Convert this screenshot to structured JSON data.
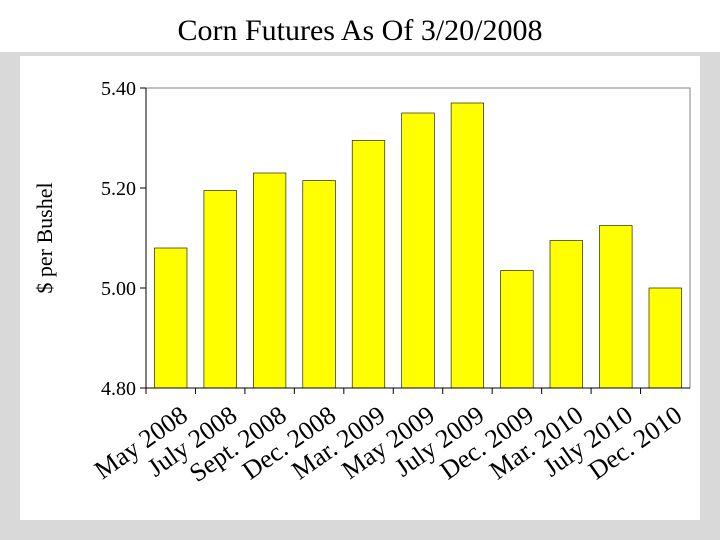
{
  "slide": {
    "title": "Corn Futures As Of 3/20/2008"
  },
  "colors": {
    "bar_fill": "#ffff00",
    "bar_stroke": "#000000",
    "plot_bg": "#ffffff",
    "frame_bg": "#d9d9d9"
  },
  "chart_data": {
    "type": "bar",
    "title": "Corn Futures As Of 3/20/2008",
    "xlabel": "",
    "ylabel": "$ per Bushel",
    "ylim": [
      4.8,
      5.4
    ],
    "yticks": [
      4.8,
      5.0,
      5.2,
      5.4
    ],
    "ytick_labels": [
      "4.80",
      "5.00",
      "5.20",
      "5.40"
    ],
    "grid": false,
    "legend": "none",
    "categories": [
      "May 2008",
      "July 2008",
      "Sept. 2008",
      "Dec. 2008",
      "Mar. 2009",
      "May 2009",
      "July 2009",
      "Dec. 2009",
      "Mar. 2010",
      "July 2010",
      "Dec. 2010"
    ],
    "values": [
      5.08,
      5.195,
      5.23,
      5.215,
      5.295,
      5.35,
      5.37,
      5.035,
      5.095,
      5.125,
      5.0
    ]
  }
}
